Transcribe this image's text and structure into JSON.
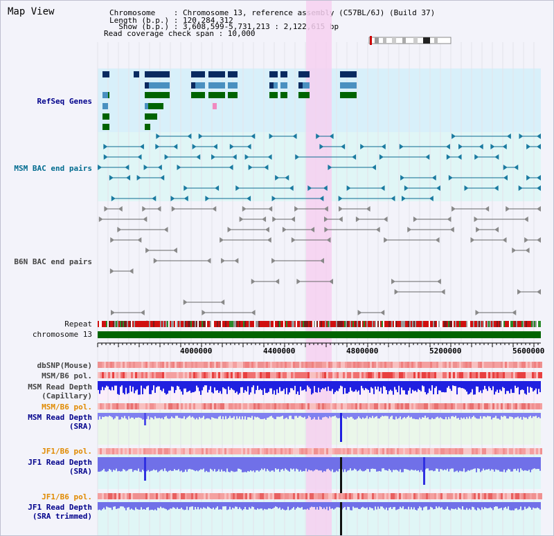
{
  "view": {
    "title": "Map View",
    "info_lines": [
      "Chromosome    : Chromosome 13, reference assembly (C57BL/6J) (Build 37)",
      "Length (b.p.) : 120,284,312",
      "  Show (b.p.) : 3,608,599-5,731,213 : 2,122,615 bp",
      "Read coverage check span : 10,000"
    ]
  },
  "tracks": {
    "refseq": "RefSeq Genes",
    "msm_bac": "MSM BAC end pairs",
    "b6n_bac": "B6N BAC end pairs",
    "repeat": "Repeat",
    "chromosome": "chromosome 13",
    "dbsnp": "dbSNP(Mouse)",
    "msm_b6_pol_1": "MSM/B6 pol.",
    "msm_read_depth_cap_1": "MSM Read Depth",
    "msm_read_depth_cap_2": "(Capillary)",
    "msm_b6_pol_2": "MSM/B6 pol.",
    "msm_read_depth_sra_1": "MSM Read Depth",
    "msm_read_depth_sra_2": "(SRA)",
    "jf1_b6_pol_1": "JF1/B6 pol.",
    "jf1_read_depth_sra_1": "JF1 Read Depth",
    "jf1_read_depth_sra_2": "(SRA)",
    "jf1_b6_pol_2": "JF1/B6 pol.",
    "jf1_read_depth_trim_1": "JF1 Read Depth",
    "jf1_read_depth_trim_2": "(SRA trimmed)"
  },
  "axis": {
    "ticks": [
      "4000000",
      "4400000",
      "4800000",
      "5200000",
      "5600000"
    ]
  },
  "colors": {
    "highlight": "#f6d0f0",
    "refseq_bg": "#d8f0fa",
    "bac_bg": "#e0f6f6",
    "navy": "#0a2a60",
    "steel": "#4a90c0",
    "green": "#006400",
    "chrom": "#006400"
  }
}
